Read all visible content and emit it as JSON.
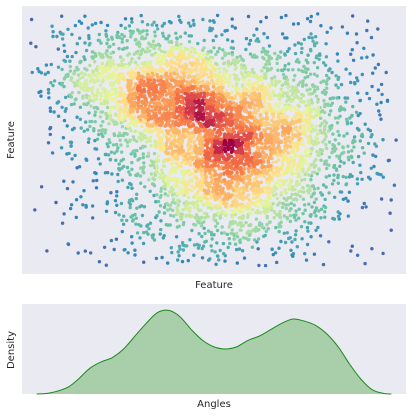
{
  "chart_data": [
    {
      "type": "scatter",
      "xlabel": "Feature",
      "ylabel": "Feature",
      "grid": false,
      "xticks": [],
      "yticks": [],
      "colormap": "Spectral",
      "color_encodes": "local point density (dense = dark red, sparse = blue)",
      "background": "#eaeaf2",
      "clusters": [
        {
          "center": [
            -0.9,
            0.9
          ],
          "spread": [
            0.85,
            0.6
          ],
          "count": 1900,
          "tilt": -0.25
        },
        {
          "center": [
            0.4,
            -0.5
          ],
          "spread": [
            0.9,
            0.75
          ],
          "count": 2300,
          "tilt": 0.35
        },
        {
          "center": [
            1.1,
            0.6
          ],
          "spread": [
            0.8,
            0.7
          ],
          "count": 700,
          "tilt": 0.0
        },
        {
          "center": [
            0.0,
            0.0
          ],
          "spread": [
            2.0,
            1.6
          ],
          "count": 800,
          "tilt": 0.0
        }
      ],
      "xlim": [
        -3.4,
        3.4
      ],
      "ylim": [
        -2.6,
        2.6
      ]
    },
    {
      "type": "area",
      "xlabel": "Angles",
      "ylabel": "Density",
      "grid": false,
      "xticks": [],
      "yticks": [],
      "fill_color": "#a9ceaa",
      "line_color": "#1a8a1a",
      "background": "#eaeaf2",
      "x": [
        -3.14,
        -2.9,
        -2.6,
        -2.4,
        -2.2,
        -2.0,
        -1.8,
        -1.6,
        -1.4,
        -1.2,
        -1.0,
        -0.8,
        -0.6,
        -0.4,
        -0.2,
        0.0,
        0.2,
        0.4,
        0.6,
        0.8,
        1.0,
        1.2,
        1.4,
        1.6,
        1.8,
        2.0,
        2.2,
        2.4,
        2.6,
        2.8,
        3.0,
        3.14
      ],
      "y": [
        0.0,
        0.005,
        0.03,
        0.07,
        0.12,
        0.15,
        0.17,
        0.21,
        0.27,
        0.33,
        0.38,
        0.39,
        0.36,
        0.3,
        0.25,
        0.22,
        0.21,
        0.22,
        0.25,
        0.27,
        0.3,
        0.33,
        0.35,
        0.34,
        0.32,
        0.28,
        0.22,
        0.14,
        0.07,
        0.02,
        0.003,
        0.0
      ],
      "xlim": [
        -3.4,
        3.4
      ],
      "ylim": [
        0,
        0.42
      ]
    }
  ]
}
